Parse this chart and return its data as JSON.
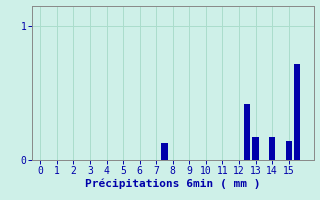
{
  "title": "",
  "xlabel": "Précipitations 6min ( mm )",
  "ylabel": "",
  "xlim": [
    -0.5,
    16.5
  ],
  "ylim": [
    0,
    1.15
  ],
  "yticks": [
    0,
    1
  ],
  "xticks": [
    0,
    1,
    2,
    3,
    4,
    5,
    6,
    7,
    8,
    9,
    10,
    11,
    12,
    13,
    14,
    15
  ],
  "background_color": "#cef0e8",
  "bar_color": "#0000aa",
  "grid_color": "#aaddcc",
  "bar_positions": [
    7.5,
    12.0,
    12.5,
    13.0,
    13.5,
    14.0,
    14.5,
    15.0,
    15.5
  ],
  "bar_heights": [
    0.13,
    0.0,
    0.42,
    0.17,
    0.0,
    0.17,
    0.0,
    0.14,
    0.72
  ],
  "bar_width": 0.38,
  "tick_color": "#0000aa",
  "axis_color": "#888888",
  "label_fontsize": 8,
  "tick_fontsize": 7,
  "font_family": "monospace"
}
